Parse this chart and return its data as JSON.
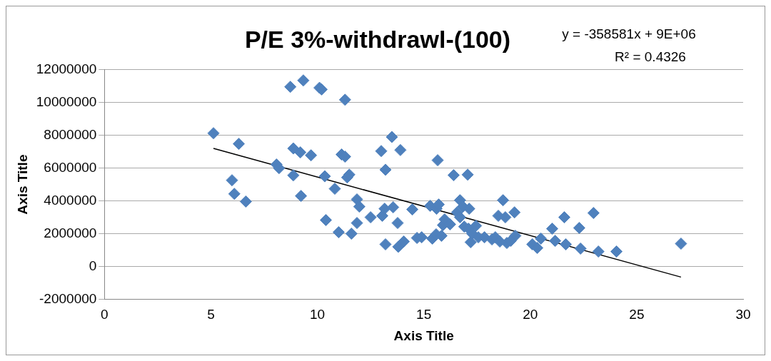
{
  "chart_data": {
    "type": "scatter",
    "title": "P/E 3%-withdrawl-(100)",
    "xlabel": "Axis Title",
    "ylabel": "Axis Title",
    "annotations": [
      "y = -358581x + 9E+06",
      "R² = 0.4326"
    ],
    "xlim": [
      0,
      30
    ],
    "xticks": [
      0,
      5,
      10,
      15,
      20,
      25,
      30
    ],
    "ylim": [
      -2000000,
      12000000
    ],
    "yticks": [
      -2000000,
      0,
      2000000,
      4000000,
      6000000,
      8000000,
      10000000,
      12000000
    ],
    "grid": "y",
    "legend": false,
    "marker": "diamond",
    "series": [
      {
        "type": "scatter",
        "color": "#4f81bd",
        "x": [
          5.12,
          6.31,
          5.99,
          6.1,
          6.64,
          8.08,
          8.2,
          8.73,
          9.34,
          10.1,
          10.2,
          11.3,
          8.87,
          9.2,
          9.7,
          8.87,
          9.23,
          10.35,
          10.4,
          10.82,
          11.14,
          11.3,
          11.4,
          11.5,
          11.0,
          11.6,
          11.86,
          11.97,
          11.86,
          12.5,
          13.0,
          13.5,
          13.9,
          13.2,
          13.05,
          13.16,
          13.56,
          13.2,
          13.8,
          13.77,
          14.06,
          14.46,
          14.68,
          14.9,
          15.3,
          15.6,
          15.65,
          15.7,
          15.4,
          15.58,
          15.83,
          15.9,
          15.98,
          16.4,
          16.23,
          16.56,
          16.7,
          16.84,
          16.7,
          16.9,
          17.06,
          17.13,
          17.1,
          17.2,
          17.27,
          17.45,
          17.56,
          17.85,
          18.2,
          18.36,
          18.5,
          18.72,
          18.83,
          18.9,
          18.57,
          19.26,
          19.3,
          19.08,
          20.1,
          20.33,
          20.5,
          21.03,
          21.17,
          21.6,
          21.67,
          22.3,
          22.36,
          22.97,
          23.2,
          24.05,
          27.08
        ],
        "values": [
          8130000,
          7480000,
          5260000,
          4430000,
          3960000,
          6220000,
          6000000,
          10960000,
          11350000,
          10900000,
          10800000,
          10170000,
          7200000,
          6960000,
          6780000,
          5560000,
          4300000,
          5500000,
          2830000,
          4740000,
          6830000,
          6700000,
          5430000,
          5600000,
          2090000,
          2000000,
          4090000,
          3650000,
          2650000,
          3000000,
          7040000,
          7900000,
          7100000,
          5900000,
          3090000,
          3520000,
          3610000,
          1350000,
          1200000,
          2650000,
          1520000,
          3480000,
          1740000,
          1780000,
          3700000,
          3520000,
          6480000,
          3780000,
          1700000,
          1960000,
          1870000,
          2520000,
          2870000,
          5570000,
          2570000,
          3300000,
          4040000,
          3650000,
          3000000,
          2430000,
          5600000,
          3520000,
          2300000,
          1480000,
          2000000,
          2480000,
          1780000,
          1780000,
          1650000,
          1780000,
          3090000,
          4040000,
          3000000,
          1430000,
          1520000,
          3300000,
          1870000,
          1560000,
          1350000,
          1130000,
          1700000,
          2300000,
          1560000,
          3000000,
          1350000,
          2350000,
          1090000,
          3260000,
          910000,
          910000,
          1390000
        ]
      },
      {
        "type": "line",
        "color": "#000000",
        "marker": "none",
        "x": [
          5.12,
          27.08
        ],
        "values": [
          7200000,
          -650000
        ]
      }
    ]
  }
}
